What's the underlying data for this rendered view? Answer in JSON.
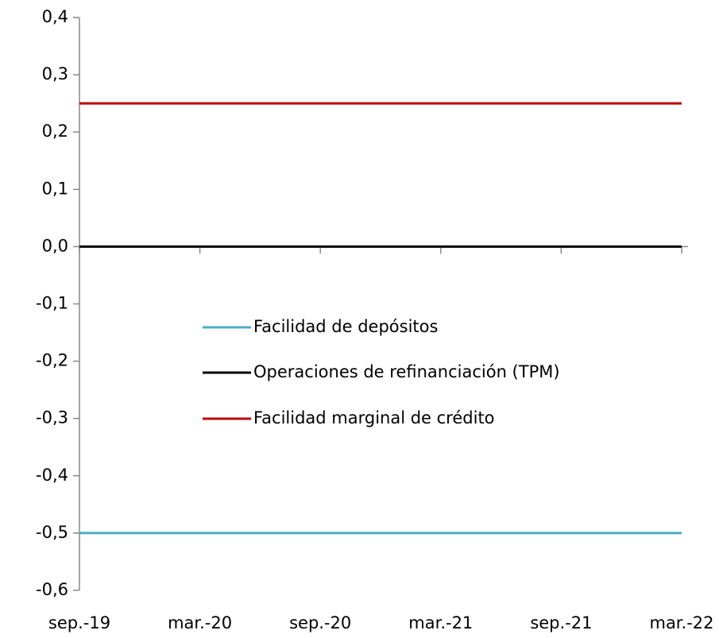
{
  "chart_data": {
    "type": "line",
    "categories": [
      "sep.-19",
      null,
      null,
      null,
      null,
      null,
      "mar.-20",
      null,
      null,
      null,
      null,
      null,
      "sep.-20",
      null,
      null,
      null,
      null,
      null,
      "mar.-21",
      null,
      null,
      null,
      null,
      null,
      "sep.-21",
      null,
      null,
      null,
      null,
      null,
      "mar.-22"
    ],
    "series": [
      {
        "name": "Facilidad de depósitos",
        "color": "#4bacc6",
        "values": [
          -0.5,
          -0.5,
          -0.5,
          -0.5,
          -0.5,
          -0.5,
          -0.5,
          -0.5,
          -0.5,
          -0.5,
          -0.5,
          -0.5,
          -0.5,
          -0.5,
          -0.5,
          -0.5,
          -0.5,
          -0.5,
          -0.5,
          -0.5,
          -0.5,
          -0.5,
          -0.5,
          -0.5,
          -0.5,
          -0.5,
          -0.5,
          -0.5,
          -0.5,
          -0.5,
          -0.5
        ]
      },
      {
        "name": "Operaciones de refinanciación  (TPM)",
        "color": "#000000",
        "values": [
          0,
          0,
          0,
          0,
          0,
          0,
          0,
          0,
          0,
          0,
          0,
          0,
          0,
          0,
          0,
          0,
          0,
          0,
          0,
          0,
          0,
          0,
          0,
          0,
          0,
          0,
          0,
          0,
          0,
          0,
          0
        ]
      },
      {
        "name": "Facilidad marginal de crédito",
        "color": "#c00000",
        "values": [
          0.25,
          0.25,
          0.25,
          0.25,
          0.25,
          0.25,
          0.25,
          0.25,
          0.25,
          0.25,
          0.25,
          0.25,
          0.25,
          0.25,
          0.25,
          0.25,
          0.25,
          0.25,
          0.25,
          0.25,
          0.25,
          0.25,
          0.25,
          0.25,
          0.25,
          0.25,
          0.25,
          0.25,
          0.25,
          0.25,
          0.25
        ]
      }
    ],
    "ylim": [
      -0.6,
      0.4
    ],
    "yticks": [
      {
        "value": -0.6,
        "label": "-0,6"
      },
      {
        "value": -0.5,
        "label": "-0,5"
      },
      {
        "value": -0.4,
        "label": "-0,4"
      },
      {
        "value": -0.3,
        "label": "-0,3"
      },
      {
        "value": -0.2,
        "label": "-0,2"
      },
      {
        "value": -0.1,
        "label": "-0,1"
      },
      {
        "value": 0,
        "label": "0,0"
      },
      {
        "value": 0.1,
        "label": "0,1"
      },
      {
        "value": 0.2,
        "label": "0,2"
      },
      {
        "value": 0.3,
        "label": "0,3"
      },
      {
        "value": 0.4,
        "label": "0,4"
      }
    ],
    "grid": false
  }
}
